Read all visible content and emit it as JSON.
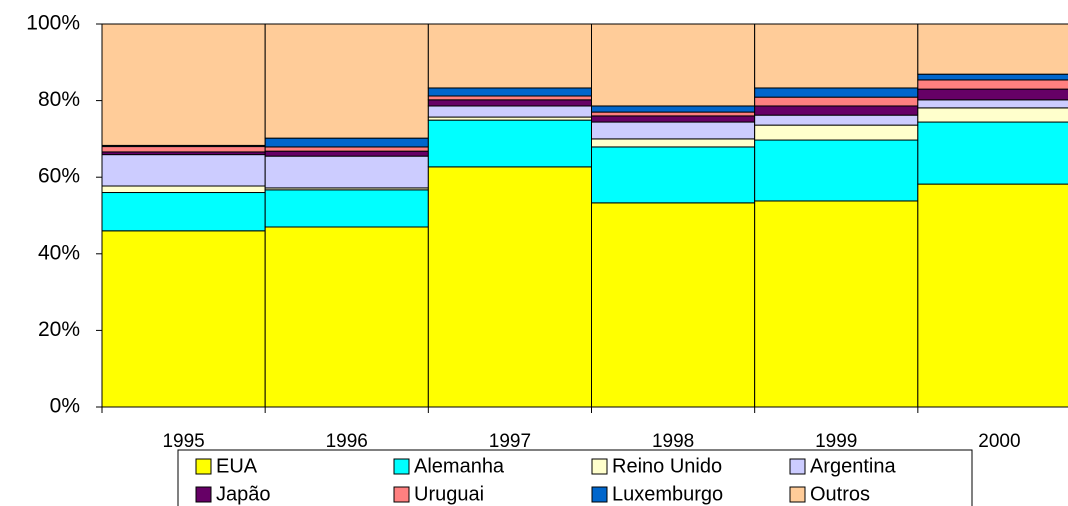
{
  "chart_data": {
    "type": "stacked_bar",
    "categories": [
      "1995",
      "1996",
      "1997",
      "1998",
      "1999",
      "2000"
    ],
    "series": [
      {
        "name": "EUA",
        "color": "#ffff00",
        "values": [
          46,
          47,
          62.7,
          53.3,
          53.8,
          58.2
        ]
      },
      {
        "name": "Alemanha",
        "color": "#00ffff",
        "values": [
          10,
          9.7,
          12.2,
          14.6,
          15.9,
          16.2
        ]
      },
      {
        "name": "Reino Unido",
        "color": "#ffffcc",
        "values": [
          1.7,
          0.5,
          0.8,
          2.1,
          3.9,
          3.7
        ]
      },
      {
        "name": "Argentina",
        "color": "#ccccff",
        "values": [
          8.2,
          8.3,
          2.9,
          4.4,
          2.6,
          2.1
        ]
      },
      {
        "name": "Japão",
        "color": "#660066",
        "values": [
          0.7,
          1.3,
          1.6,
          1.6,
          2.4,
          2.8
        ]
      },
      {
        "name": "Uruguai",
        "color": "#ff8080",
        "values": [
          1.4,
          1.1,
          1.0,
          1.0,
          2.3,
          2.4
        ]
      },
      {
        "name": "Luxemburgo",
        "color": "#0066cc",
        "values": [
          0.3,
          2.3,
          2.1,
          1.6,
          2.4,
          1.5
        ]
      },
      {
        "name": "Outros",
        "color": "#ffcc99",
        "values": [
          31.7,
          29.8,
          16.7,
          21.4,
          16.7,
          13.1
        ]
      }
    ],
    "ylim": [
      0,
      100
    ],
    "yticks": [
      {
        "value": 0,
        "label": "0%"
      },
      {
        "value": 20,
        "label": "20%"
      },
      {
        "value": 40,
        "label": "40%"
      },
      {
        "value": 60,
        "label": "60%"
      },
      {
        "value": 80,
        "label": "80%"
      },
      {
        "value": 100,
        "label": "100%"
      }
    ],
    "legend": "bottom"
  }
}
